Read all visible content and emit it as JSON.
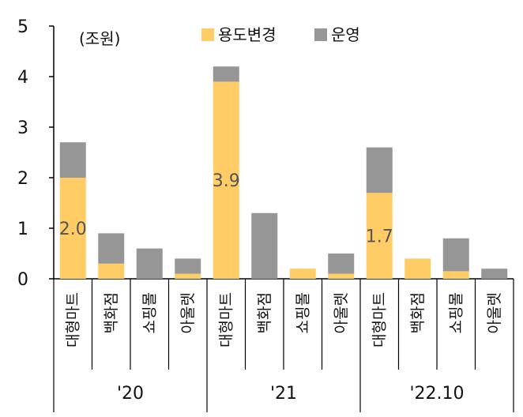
{
  "chart_data": {
    "type": "bar",
    "stacked": true,
    "unit_label": "(조원)",
    "ylim": [
      0,
      5
    ],
    "yticks": [
      "0",
      "1",
      "2",
      "3",
      "4",
      "5"
    ],
    "grid": false,
    "legend_position": "top-center",
    "groups": [
      {
        "label": "'20",
        "categories": [
          "대형마트",
          "백화점",
          "쇼핑몰",
          "아울렛"
        ]
      },
      {
        "label": "'21",
        "categories": [
          "대형마트",
          "백화점",
          "쇼핑몰",
          "아울렛"
        ]
      },
      {
        "label": "'22.10",
        "categories": [
          "대형마트",
          "백화점",
          "쇼핑몰",
          "아울렛"
        ]
      }
    ],
    "series": [
      {
        "name": "용도변경",
        "color": "#FFCC66",
        "values": [
          2.0,
          0.3,
          0.0,
          0.1,
          3.9,
          0.0,
          0.2,
          0.1,
          1.7,
          0.4,
          0.15,
          0.0
        ]
      },
      {
        "name": "운영",
        "color": "#969696",
        "values": [
          0.7,
          0.6,
          0.6,
          0.3,
          0.3,
          1.3,
          0.0,
          0.4,
          0.9,
          0.0,
          0.65,
          0.2
        ]
      }
    ],
    "data_labels": [
      {
        "index": 0,
        "text": "2.0"
      },
      {
        "index": 4,
        "text": "3.9"
      },
      {
        "index": 8,
        "text": "1.7"
      }
    ]
  }
}
